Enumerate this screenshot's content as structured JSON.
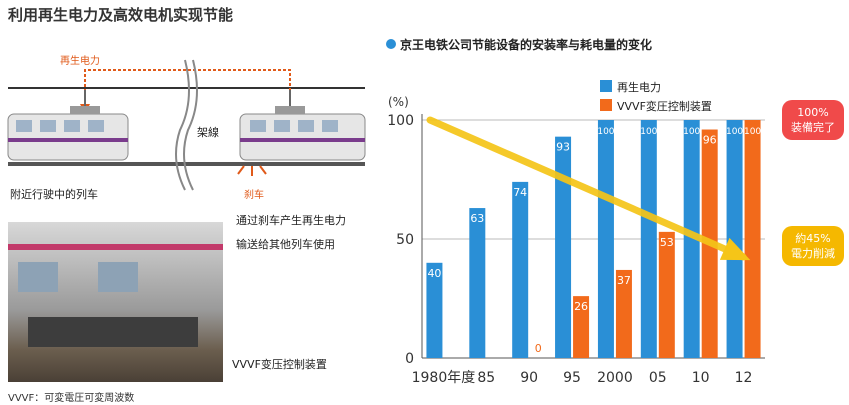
{
  "page_title": "利用再生电力及高效电机实现节能",
  "diagram": {
    "regen_label": "再生电力",
    "wire_label": "架線",
    "left_train_caption": "附近行驶中的列车",
    "brake_label": "刹车",
    "right_caption_line1": "通过刹车产生再生电力",
    "right_caption_line2": "输送给其他列车使用"
  },
  "photo": {
    "caption": "VVVF变压控制装置",
    "footnote": "VVVF：可変電圧可変周波数"
  },
  "chart_title": "京王电铁公司节能设备的安装率与耗电量的变化",
  "callouts": {
    "top_line1": "100%",
    "top_line2": "装備完了",
    "bottom_line1": "約45%",
    "bottom_line2": "電力削減"
  },
  "colors": {
    "regen": "#2a8fd6",
    "vvvf": "#f26a1b",
    "arrow": "#f5c518",
    "callout_top": "#f04a4a",
    "callout_bottom": "#f5b800"
  },
  "chart_data": {
    "type": "bar",
    "categories": [
      "1980年度",
      "85",
      "90",
      "95",
      "2000",
      "05",
      "10",
      "12"
    ],
    "series": [
      {
        "name": "再生电力",
        "values": [
          40,
          63,
          74,
          93,
          100,
          100,
          100,
          100
        ]
      },
      {
        "name": "VVVF変圧控制装置",
        "values": [
          null,
          null,
          0,
          26,
          37,
          53,
          96,
          100
        ]
      }
    ],
    "y_unit": "(%)",
    "yticks": [
      0,
      50,
      100
    ],
    "ylim": [
      0,
      100
    ],
    "legend_position": "top",
    "trend_arrow": {
      "from": 100,
      "to": 45
    }
  }
}
